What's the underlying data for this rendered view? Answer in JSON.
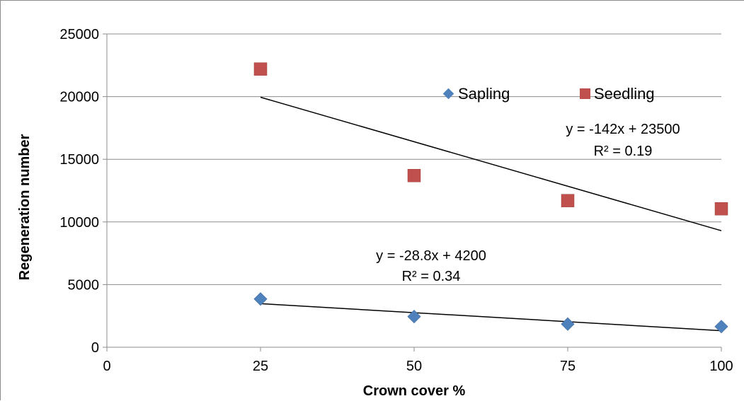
{
  "chart_data": {
    "type": "scatter",
    "xlabel": "Crown cover %",
    "ylabel": "Regeneration number",
    "xlim": [
      0,
      100
    ],
    "ylim": [
      0,
      25000
    ],
    "x_ticks": [
      "0",
      "25",
      "50",
      "75",
      "100"
    ],
    "y_ticks": [
      "0",
      "5000",
      "10000",
      "15000",
      "20000",
      "25000"
    ],
    "grid": "horizontal",
    "legend_position": "top-right",
    "series": [
      {
        "name": "Sapling",
        "marker": "diamond",
        "color": "#4f81bd",
        "x": [
          25,
          50,
          75,
          100
        ],
        "y": [
          3850,
          2450,
          1850,
          1650
        ],
        "trendline": {
          "slope": -28.8,
          "intercept": 4200,
          "equation": "y = -28.8x + 4200",
          "r2": "R² = 0.34"
        }
      },
      {
        "name": "Seedling",
        "marker": "square",
        "color": "#c0504d",
        "x": [
          25,
          50,
          75,
          100
        ],
        "y": [
          22200,
          13700,
          11700,
          11050
        ],
        "trendline": {
          "slope": -142,
          "intercept": 23500,
          "equation": "y = -142x + 23500",
          "r2": "R² = 0.19"
        }
      }
    ]
  }
}
